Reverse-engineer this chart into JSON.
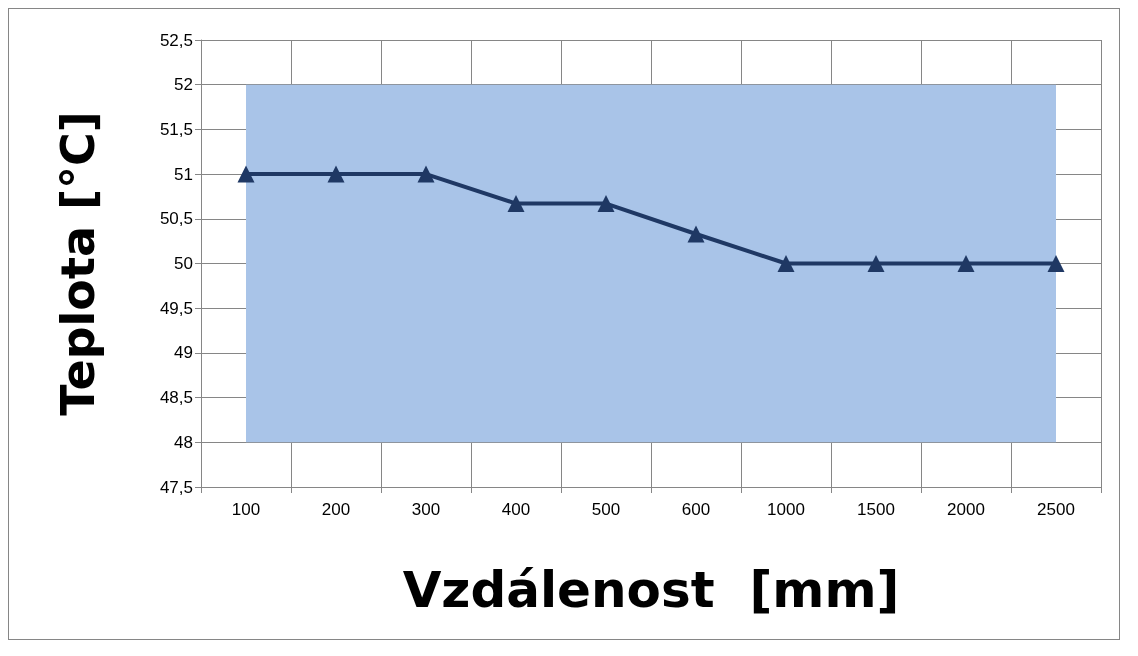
{
  "chart_data": {
    "type": "line",
    "xlabel": "Vzdálenost  [mm]",
    "ylabel": "Teplota [°C]",
    "categories": [
      "100",
      "200",
      "300",
      "400",
      "500",
      "600",
      "1000",
      "1500",
      "2000",
      "2500"
    ],
    "series": [
      {
        "color": "#1f3864",
        "values": [
          51,
          51,
          51,
          50.67,
          50.67,
          50.33,
          50,
          50,
          50,
          50
        ]
      }
    ],
    "ylim": [
      47.5,
      52.5
    ],
    "yticks": [
      {
        "value": 47.5,
        "label": "47,5"
      },
      {
        "value": 48,
        "label": "48"
      },
      {
        "value": 48.5,
        "label": "48,5"
      },
      {
        "value": 49,
        "label": "49"
      },
      {
        "value": 49.5,
        "label": "49,5"
      },
      {
        "value": 50,
        "label": "50"
      },
      {
        "value": 50.5,
        "label": "50,5"
      },
      {
        "value": 51,
        "label": "51"
      },
      {
        "value": 51.5,
        "label": "51,5"
      },
      {
        "value": 52,
        "label": "52"
      },
      {
        "value": 52.5,
        "label": "52,5"
      }
    ],
    "bands": [
      {
        "axis": "y",
        "from": 48,
        "to": 52,
        "color": "#a9c4e8"
      }
    ],
    "grid": true,
    "marker": "triangle",
    "line_style": "solid"
  }
}
